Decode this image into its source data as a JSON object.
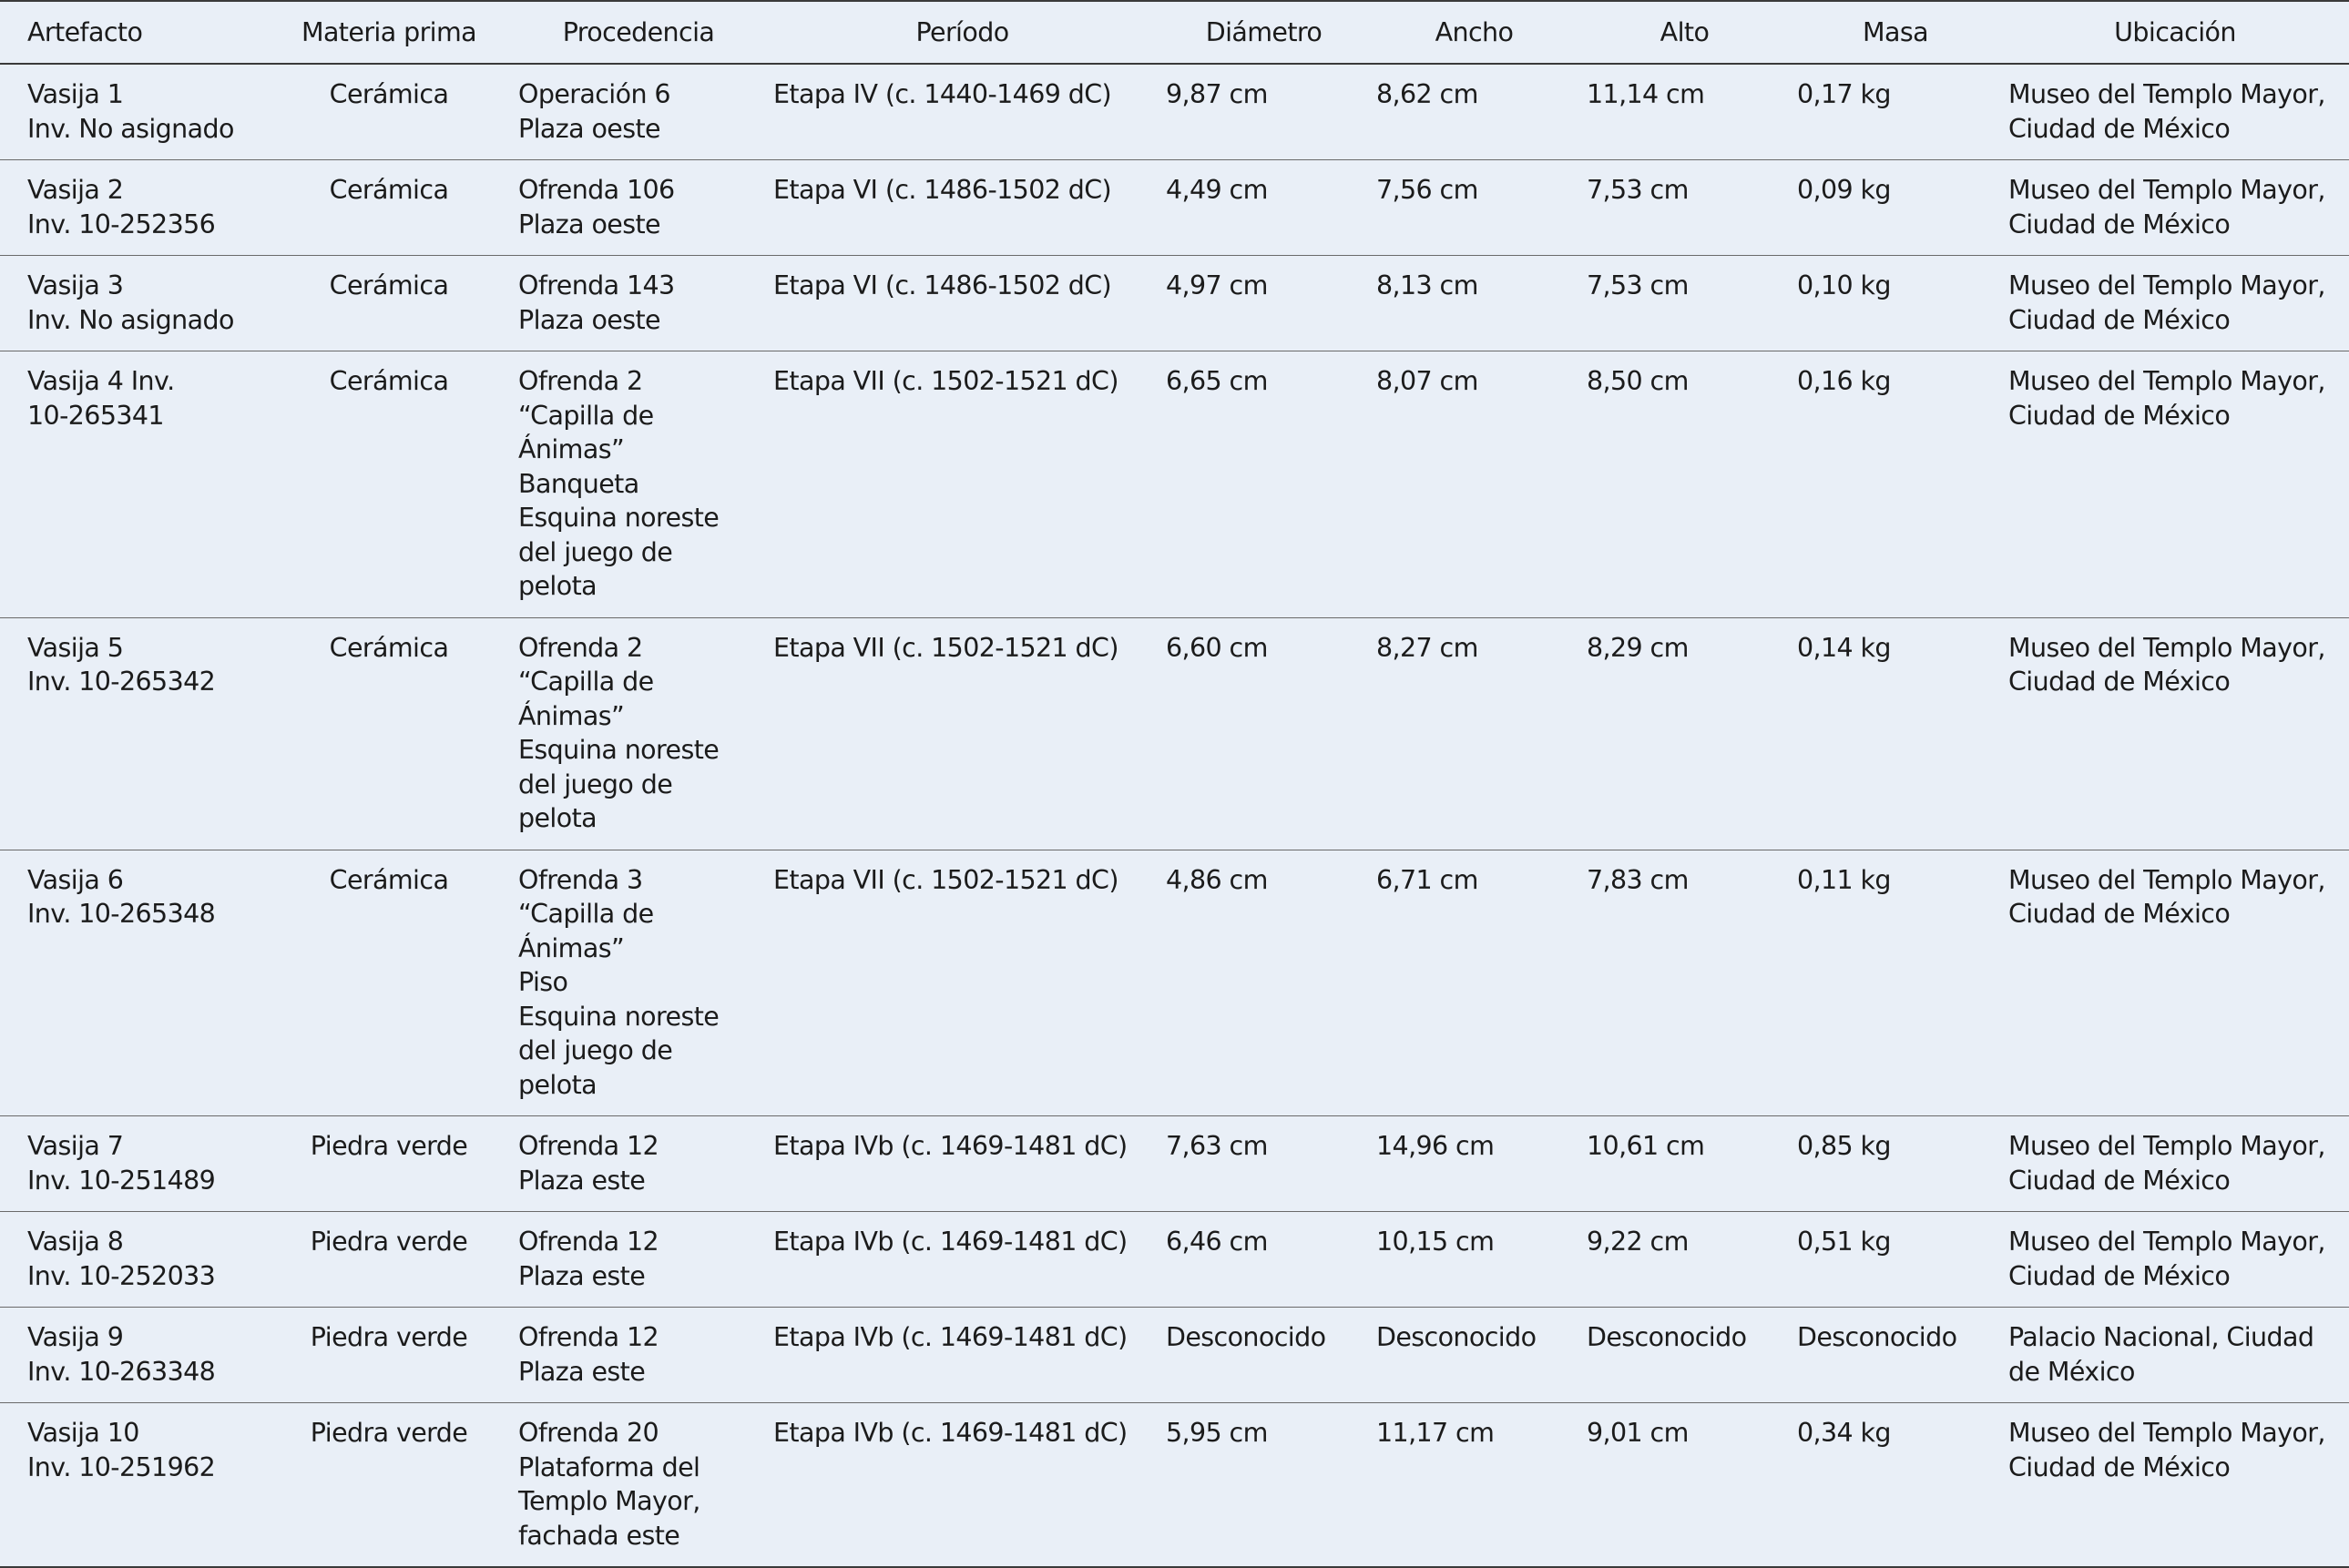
{
  "headers": [
    "Artefacto",
    "Materia prima",
    "Procedencia",
    "Período",
    "Diámetro",
    "Ancho",
    "Alto",
    "Masa",
    "Ubicación"
  ],
  "rows": [
    {
      "artefacto": [
        "Vasija 1",
        "Inv. No asignado"
      ],
      "materia": "Cerámica",
      "procedencia": [
        "Operación 6",
        "Plaza oeste"
      ],
      "periodo": "Etapa IV (c. 1440-1469 dC)",
      "diametro": "9,87 cm",
      "ancho": "8,62 cm",
      "alto": "11,14 cm",
      "masa": "0,17 kg",
      "ubicacion": [
        "Museo del Templo Mayor,",
        "Ciudad de México"
      ]
    },
    {
      "artefacto": [
        "Vasija 2",
        "Inv. 10-252356"
      ],
      "materia": "Cerámica",
      "procedencia": [
        "Ofrenda 106",
        "Plaza oeste"
      ],
      "periodo": "Etapa VI (c. 1486-1502 dC)",
      "diametro": "4,49 cm",
      "ancho": "7,56 cm",
      "alto": "7,53 cm",
      "masa": "0,09 kg",
      "ubicacion": [
        "Museo del Templo Mayor,",
        "Ciudad de México"
      ]
    },
    {
      "artefacto": [
        "Vasija 3",
        "Inv. No asignado"
      ],
      "materia": "Cerámica",
      "procedencia": [
        "Ofrenda 143",
        "Plaza oeste"
      ],
      "periodo": "Etapa VI (c. 1486-1502 dC)",
      "diametro": "4,97 cm",
      "ancho": "8,13 cm",
      "alto": "7,53 cm",
      "masa": "0,10 kg",
      "ubicacion": [
        "Museo del Templo Mayor,",
        "Ciudad de México"
      ]
    },
    {
      "artefacto": [
        "Vasija 4 Inv.",
        "10-265341"
      ],
      "materia": "Cerámica",
      "procedencia": [
        "Ofrenda 2",
        "“Capilla de",
        "Ánimas”",
        "Banqueta",
        "Esquina noreste",
        "del juego de",
        "pelota"
      ],
      "periodo": "Etapa VII (c. 1502-1521 dC)",
      "diametro": "6,65 cm",
      "ancho": "8,07 cm",
      "alto": "8,50 cm",
      "masa": "0,16 kg",
      "ubicacion": [
        "Museo del Templo Mayor,",
        "Ciudad de México"
      ]
    },
    {
      "artefacto": [
        "Vasija 5",
        "Inv. 10-265342"
      ],
      "materia": "Cerámica",
      "procedencia": [
        "Ofrenda 2",
        "“Capilla de",
        "Ánimas”",
        "Esquina noreste",
        "del juego de",
        "pelota"
      ],
      "periodo": "Etapa VII (c. 1502-1521 dC)",
      "diametro": "6,60 cm",
      "ancho": "8,27 cm",
      "alto": "8,29 cm",
      "masa": "0,14 kg",
      "ubicacion": [
        "Museo del Templo Mayor,",
        "Ciudad de México"
      ]
    },
    {
      "artefacto": [
        "Vasija 6",
        "Inv. 10-265348"
      ],
      "materia": "Cerámica",
      "procedencia": [
        "Ofrenda 3",
        "“Capilla de",
        "Ánimas”",
        "Piso",
        "Esquina noreste",
        "del juego de",
        "pelota"
      ],
      "periodo": "Etapa VII (c. 1502-1521 dC)",
      "diametro": "4,86 cm",
      "ancho": "6,71 cm",
      "alto": "7,83 cm",
      "masa": "0,11 kg",
      "ubicacion": [
        "Museo del Templo Mayor,",
        "Ciudad de México"
      ]
    },
    {
      "artefacto": [
        "Vasija 7",
        "Inv. 10-251489"
      ],
      "materia": "Piedra verde",
      "procedencia": [
        "Ofrenda 12",
        "Plaza este"
      ],
      "periodo": "Etapa IVb (c. 1469-1481 dC)",
      "diametro": "7,63 cm",
      "ancho": "14,96 cm",
      "alto": "10,61 cm",
      "masa": "0,85 kg",
      "ubicacion": [
        "Museo del Templo Mayor,",
        "Ciudad de México"
      ]
    },
    {
      "artefacto": [
        "Vasija 8",
        "Inv. 10-252033"
      ],
      "materia": "Piedra verde",
      "procedencia": [
        "Ofrenda 12",
        "Plaza este"
      ],
      "periodo": "Etapa IVb (c. 1469-1481 dC)",
      "diametro": "6,46 cm",
      "ancho": "10,15 cm",
      "alto": "9,22 cm",
      "masa": "0,51 kg",
      "ubicacion": [
        "Museo del Templo Mayor,",
        "Ciudad de México"
      ]
    },
    {
      "artefacto": [
        "Vasija 9",
        "Inv. 10-263348"
      ],
      "materia": "Piedra verde",
      "procedencia": [
        "Ofrenda 12",
        "Plaza este"
      ],
      "periodo": "Etapa IVb (c. 1469-1481 dC)",
      "diametro": "Desconocido",
      "ancho": "Desconocido",
      "alto": "Desconocido",
      "masa": "Desconocido",
      "ubicacion": [
        "Palacio Nacional, Ciudad",
        "de México"
      ]
    },
    {
      "artefacto": [
        "Vasija 10",
        "Inv. 10-251962"
      ],
      "materia": "Piedra verde",
      "procedencia": [
        "Ofrenda 20",
        "Plataforma del",
        "Templo Mayor,",
        "fachada este"
      ],
      "periodo": "Etapa IVb (c. 1469-1481 dC)",
      "diametro": "5,95 cm",
      "ancho": "11,17 cm",
      "alto": "9,01 cm",
      "masa": "0,34 kg",
      "ubicacion": [
        "Museo del Templo Mayor,",
        "Ciudad de México"
      ]
    }
  ]
}
